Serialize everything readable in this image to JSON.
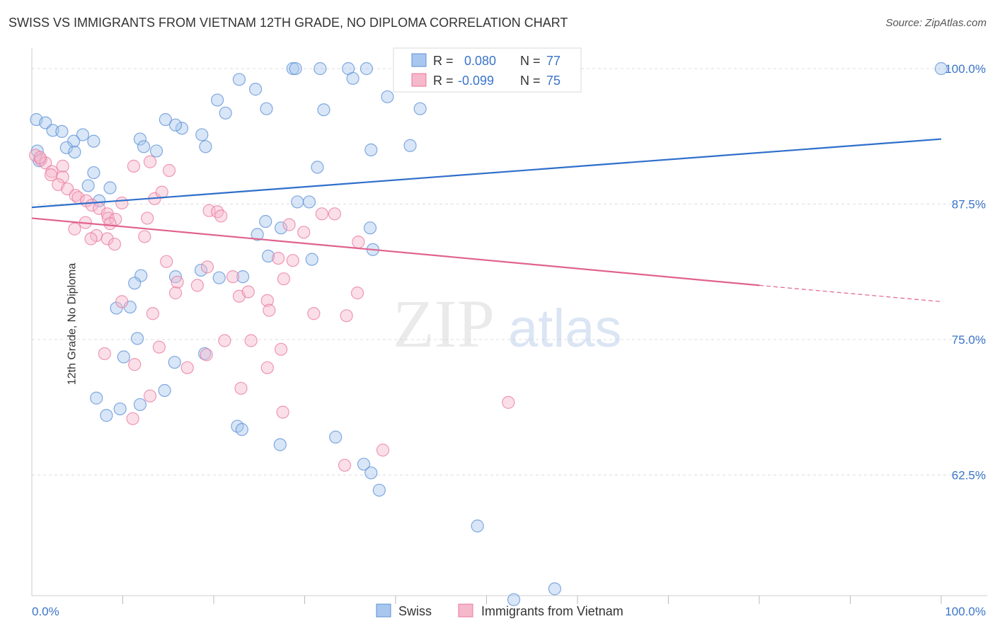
{
  "title": "SWISS VS IMMIGRANTS FROM VIETNAM 12TH GRADE, NO DIPLOMA CORRELATION CHART",
  "source": "Source: ZipAtlas.com",
  "watermark": {
    "zip": "ZIP",
    "atlas": "atlas"
  },
  "colors": {
    "swiss_fill": "#a9c7ee",
    "swiss_stroke": "#5b8fd6",
    "swiss_line": "#2f6fcb",
    "viet_fill": "#f6b8cb",
    "viet_stroke": "#e8799d",
    "viet_line": "#e0628e",
    "tick_label": "#3a74c9",
    "grid": "#dddddd"
  },
  "legend": {
    "r_label": "R =",
    "n_label": "N =",
    "rows": [
      {
        "r": "0.080",
        "n": "77"
      },
      {
        "r": "-0.099",
        "n": "75"
      }
    ]
  },
  "chart_data": {
    "type": "scatter",
    "title": "SWISS VS IMMIGRANTS FROM VIETNAM 12TH GRADE, NO DIPLOMA CORRELATION CHART",
    "xlabel": "",
    "ylabel": "12th Grade, No Diploma",
    "xlim": [
      0,
      100
    ],
    "ylim": [
      49,
      101.5
    ],
    "x_tick_labels": [
      "0.0%",
      "100.0%"
    ],
    "y_ticks": [
      {
        "value": 100.0,
        "label": "100.0%"
      },
      {
        "value": 87.5,
        "label": "87.5%"
      },
      {
        "value": 75.0,
        "label": "75.0%"
      },
      {
        "value": 62.5,
        "label": "62.5%"
      }
    ],
    "grid": true,
    "legend_position": "top-center",
    "series": [
      {
        "name": "Swiss",
        "r": 0.08,
        "n": 77,
        "trend": {
          "x0": 0,
          "y0": 87.2,
          "x1": 100,
          "y1": 93.5
        },
        "points": [
          [
            0.5,
            95.3
          ],
          [
            1.5,
            95.0
          ],
          [
            2.3,
            94.3
          ],
          [
            3.3,
            94.2
          ],
          [
            5.6,
            93.9
          ],
          [
            6.8,
            93.3
          ],
          [
            4.6,
            93.3
          ],
          [
            3.8,
            92.7
          ],
          [
            4.7,
            92.3
          ],
          [
            0.6,
            92.4
          ],
          [
            0.8,
            91.5
          ],
          [
            6.8,
            90.4
          ],
          [
            7.4,
            87.8
          ],
          [
            6.2,
            89.2
          ],
          [
            8.6,
            89.0
          ],
          [
            11.9,
            93.5
          ],
          [
            12.3,
            92.8
          ],
          [
            13.7,
            92.4
          ],
          [
            18.7,
            93.9
          ],
          [
            19.1,
            92.8
          ],
          [
            16.5,
            94.5
          ],
          [
            14.7,
            95.3
          ],
          [
            15.8,
            94.8
          ],
          [
            20.4,
            97.1
          ],
          [
            21.3,
            95.9
          ],
          [
            22.8,
            99.0
          ],
          [
            24.6,
            98.1
          ],
          [
            25.8,
            96.3
          ],
          [
            28.7,
            100.0
          ],
          [
            29.0,
            100.0
          ],
          [
            31.7,
            100.0
          ],
          [
            34.8,
            100.0
          ],
          [
            36.8,
            100.0
          ],
          [
            35.3,
            99.1
          ],
          [
            32.1,
            96.2
          ],
          [
            39.1,
            97.4
          ],
          [
            42.7,
            96.3
          ],
          [
            41.6,
            92.9
          ],
          [
            37.3,
            92.5
          ],
          [
            31.4,
            90.9
          ],
          [
            30.5,
            87.7
          ],
          [
            29.2,
            87.7
          ],
          [
            27.4,
            85.3
          ],
          [
            25.7,
            85.9
          ],
          [
            24.8,
            84.7
          ],
          [
            37.2,
            85.3
          ],
          [
            37.5,
            83.3
          ],
          [
            30.8,
            82.4
          ],
          [
            26.0,
            82.7
          ],
          [
            23.2,
            80.8
          ],
          [
            20.6,
            80.7
          ],
          [
            18.6,
            81.4
          ],
          [
            15.8,
            80.8
          ],
          [
            12.0,
            80.9
          ],
          [
            11.3,
            80.2
          ],
          [
            10.8,
            78.0
          ],
          [
            9.3,
            77.9
          ],
          [
            11.6,
            75.1
          ],
          [
            10.1,
            73.4
          ],
          [
            15.7,
            72.9
          ],
          [
            19.0,
            73.7
          ],
          [
            14.6,
            70.3
          ],
          [
            11.9,
            69.0
          ],
          [
            9.7,
            68.6
          ],
          [
            8.2,
            68.0
          ],
          [
            7.1,
            69.6
          ],
          [
            22.6,
            67.0
          ],
          [
            23.1,
            66.7
          ],
          [
            27.3,
            65.3
          ],
          [
            33.4,
            66.0
          ],
          [
            36.5,
            63.5
          ],
          [
            37.3,
            62.7
          ],
          [
            38.2,
            61.1
          ],
          [
            49.0,
            57.8
          ],
          [
            53.0,
            51.0
          ],
          [
            57.5,
            52.0
          ],
          [
            100.0,
            100.0
          ]
        ]
      },
      {
        "name": "Immigrants from Vietnam",
        "r": -0.099,
        "n": 75,
        "trend": {
          "x0": 0,
          "y0": 86.2,
          "x1": 80,
          "y1": 80.0,
          "dash_to": {
            "x": 100,
            "y": 78.5
          }
        },
        "points": [
          [
            0.4,
            92.0
          ],
          [
            1.0,
            91.6
          ],
          [
            1.5,
            91.3
          ],
          [
            2.2,
            90.5
          ],
          [
            3.4,
            91.0
          ],
          [
            2.1,
            90.2
          ],
          [
            0.9,
            91.8
          ],
          [
            3.4,
            90.0
          ],
          [
            2.9,
            89.3
          ],
          [
            3.9,
            88.9
          ],
          [
            4.8,
            88.3
          ],
          [
            5.1,
            88.1
          ],
          [
            6.0,
            87.8
          ],
          [
            6.6,
            87.4
          ],
          [
            7.4,
            87.1
          ],
          [
            8.3,
            86.6
          ],
          [
            8.4,
            86.2
          ],
          [
            9.2,
            86.1
          ],
          [
            5.9,
            85.8
          ],
          [
            4.7,
            85.2
          ],
          [
            7.1,
            84.6
          ],
          [
            6.5,
            84.3
          ],
          [
            8.3,
            84.3
          ],
          [
            8.6,
            85.7
          ],
          [
            9.1,
            83.8
          ],
          [
            9.9,
            87.6
          ],
          [
            12.4,
            84.5
          ],
          [
            12.7,
            86.2
          ],
          [
            13.5,
            88.0
          ],
          [
            14.3,
            88.6
          ],
          [
            15.1,
            90.6
          ],
          [
            13.0,
            91.4
          ],
          [
            11.2,
            91.0
          ],
          [
            14.8,
            82.2
          ],
          [
            16.0,
            80.3
          ],
          [
            15.8,
            79.3
          ],
          [
            19.3,
            81.7
          ],
          [
            18.2,
            80.0
          ],
          [
            19.5,
            86.9
          ],
          [
            20.4,
            86.8
          ],
          [
            20.8,
            86.4
          ],
          [
            22.1,
            80.8
          ],
          [
            22.8,
            79.0
          ],
          [
            23.8,
            79.4
          ],
          [
            25.9,
            78.6
          ],
          [
            27.1,
            82.5
          ],
          [
            28.3,
            85.6
          ],
          [
            29.9,
            84.9
          ],
          [
            31.9,
            86.6
          ],
          [
            33.3,
            86.6
          ],
          [
            35.9,
            84.0
          ],
          [
            28.7,
            82.3
          ],
          [
            26.1,
            77.7
          ],
          [
            27.7,
            80.6
          ],
          [
            34.6,
            77.2
          ],
          [
            31.0,
            77.4
          ],
          [
            35.8,
            79.3
          ],
          [
            27.4,
            74.1
          ],
          [
            24.1,
            74.9
          ],
          [
            21.2,
            74.9
          ],
          [
            19.2,
            73.6
          ],
          [
            17.1,
            72.4
          ],
          [
            14.0,
            74.3
          ],
          [
            11.3,
            72.7
          ],
          [
            8.0,
            73.7
          ],
          [
            9.9,
            78.5
          ],
          [
            13.3,
            77.4
          ],
          [
            25.9,
            72.4
          ],
          [
            23.0,
            70.5
          ],
          [
            13.0,
            69.8
          ],
          [
            27.6,
            68.3
          ],
          [
            52.4,
            69.2
          ],
          [
            34.4,
            63.4
          ],
          [
            38.6,
            64.8
          ],
          [
            11.1,
            67.7
          ]
        ]
      }
    ]
  },
  "legend_bottom": [
    {
      "label": "Swiss"
    },
    {
      "label": "Immigrants from Vietnam"
    }
  ]
}
